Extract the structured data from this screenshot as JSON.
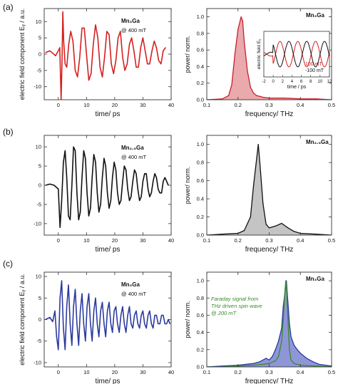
{
  "chart_data": [
    {
      "type": "line",
      "row_label": "(a)",
      "panel": "time",
      "xlabel": "time/ ps",
      "ylabel": "electric field component Eᵧ / a.u.",
      "xlim": [
        -5,
        40
      ],
      "ylim": [
        -14,
        14
      ],
      "xticks": [
        "0",
        "10",
        "20",
        "30",
        "40"
      ],
      "yticks": [
        "-10",
        "-5",
        "0",
        "5",
        "10"
      ],
      "xtick_values": [
        0,
        10,
        20,
        30,
        40
      ],
      "ytick_values": [
        -10,
        -5,
        0,
        5,
        10
      ],
      "color": "#d42020",
      "annotations": [
        "Mn₃Ga",
        "@ 400 mT"
      ],
      "series": [
        {
          "x": [
            -4.5,
            -3,
            -2,
            -1,
            0,
            0.5,
            1,
            1.3,
            1.6,
            1.9,
            2.4,
            3,
            3.7,
            4.4,
            5.2,
            6,
            6.8,
            7.6,
            8.4,
            9.2,
            10,
            10.8,
            11.6,
            12.4,
            13.2,
            14,
            14.8,
            15.6,
            16.4,
            17.2,
            18,
            18.8,
            19.6,
            20.4,
            21.2,
            22,
            22.8,
            23.6,
            24.4,
            25.2,
            26,
            26.8,
            27.6,
            28.4,
            29.2,
            30,
            30.8,
            31.6,
            32.4,
            33.2,
            34,
            34.8,
            35.6,
            36.4,
            37.2,
            38
          ],
          "y": [
            0.5,
            1,
            0.3,
            -0.5,
            1,
            2,
            -14,
            -3,
            13,
            4,
            -3,
            -4,
            3,
            7,
            4,
            -5,
            -7,
            -1,
            8,
            8,
            0,
            -8,
            -6,
            3,
            9,
            5,
            -4,
            -7,
            -1,
            7,
            6,
            -3,
            -6,
            -2,
            5,
            7,
            -1,
            -5,
            -3,
            3,
            5,
            1,
            -4,
            -4,
            2,
            5,
            1,
            -3,
            -3,
            1,
            4,
            2,
            -2,
            -3,
            1,
            2
          ]
        }
      ]
    },
    {
      "type": "area",
      "row_label": "(a)",
      "panel": "spectrum",
      "xlabel": "frequency/ THz",
      "ylabel": "power/ norm.",
      "xlim": [
        0.1,
        0.5
      ],
      "ylim": [
        0,
        1.1
      ],
      "xticks": [
        "0.1",
        "0.2",
        "0.3",
        "0.4",
        "0.5"
      ],
      "yticks": [
        "0.0",
        "0.2",
        "0.4",
        "0.6",
        "0.8",
        "1.0"
      ],
      "xtick_values": [
        0.1,
        0.2,
        0.3,
        0.4,
        0.5
      ],
      "ytick_values": [
        0,
        0.2,
        0.4,
        0.6,
        0.8,
        1.0
      ],
      "color": "#c8202a",
      "fill": "#e9a9ad",
      "annotations": [
        "Mn₃Ga"
      ],
      "series": [
        {
          "x": [
            0.1,
            0.15,
            0.17,
            0.18,
            0.19,
            0.2,
            0.21,
            0.215,
            0.22,
            0.23,
            0.24,
            0.25,
            0.26,
            0.27,
            0.28,
            0.3,
            0.35,
            0.4,
            0.45,
            0.5
          ],
          "y": [
            0,
            0.01,
            0.05,
            0.18,
            0.55,
            0.85,
            1.0,
            0.95,
            0.7,
            0.35,
            0.15,
            0.08,
            0.05,
            0.04,
            0.03,
            0.02,
            0.02,
            0.01,
            0.01,
            0
          ]
        }
      ],
      "inset": {
        "xlabel": "time / ps",
        "ylabel": "electric field Eᵧ",
        "xlim": [
          -2,
          12
        ],
        "xticks": [
          "-2",
          "0",
          "2",
          "4",
          "6",
          "8",
          "10",
          "12"
        ],
        "xtick_values": [
          -2,
          0,
          2,
          4,
          6,
          8,
          10,
          12
        ],
        "series": [
          {
            "name": "100 mT",
            "color": "#d42020"
          },
          {
            "name": "-100 mT",
            "color": "#111111"
          }
        ]
      }
    },
    {
      "type": "line",
      "row_label": "(b)",
      "panel": "time",
      "xlabel": "time/ ps",
      "ylabel": "",
      "xlim": [
        -5,
        40
      ],
      "ylim": [
        -13,
        13
      ],
      "xticks": [
        "0",
        "10",
        "20",
        "30",
        "40"
      ],
      "yticks": [
        "-10",
        "-5",
        "0",
        "5",
        "10"
      ],
      "xtick_values": [
        0,
        10,
        20,
        30,
        40
      ],
      "ytick_values": [
        -10,
        -5,
        0,
        5,
        10
      ],
      "color": "#111111",
      "annotations": [
        "Mn₂.₅Ga",
        "@ 400 mT"
      ],
      "series": [
        {
          "x": [
            -4.5,
            -3,
            -1.5,
            0,
            0.6,
            1.2,
            1.8,
            2.4,
            3,
            3.6,
            4.2,
            4.8,
            5.4,
            6,
            6.6,
            7.2,
            7.8,
            8.4,
            9,
            9.6,
            10.2,
            10.8,
            11.4,
            12,
            12.6,
            13.2,
            13.8,
            14.4,
            15,
            15.6,
            16.2,
            16.8,
            17.4,
            18,
            18.6,
            19.2,
            19.8,
            20.4,
            21,
            21.6,
            22.2,
            22.8,
            23.4,
            24,
            24.6,
            25.2,
            25.8,
            26.4,
            27,
            27.6,
            28.2,
            28.8,
            29.4,
            30,
            30.6,
            31.2,
            31.8,
            32.4,
            33,
            33.6,
            34.2,
            34.8,
            35.4,
            36,
            36.6,
            37.2,
            37.8,
            38.4,
            39
          ],
          "y": [
            0,
            0.3,
            0,
            -1,
            -11,
            -4,
            6,
            9,
            2,
            -8,
            -9,
            0,
            10,
            9,
            -2,
            -9,
            -7,
            2,
            9,
            7,
            -2,
            -8,
            -6,
            2,
            8,
            6,
            -2,
            -7,
            -5,
            2,
            7,
            5,
            -2,
            -6,
            -4,
            2,
            6,
            4,
            -2,
            -5,
            -4,
            1,
            5,
            4,
            -1,
            -4,
            -3,
            1,
            4,
            3,
            -1,
            -4,
            -3,
            1,
            3,
            3,
            -1,
            -3,
            -2,
            1,
            3,
            2,
            -1,
            -2,
            -2,
            1,
            2,
            1,
            0
          ]
        }
      ]
    },
    {
      "type": "area",
      "row_label": "(b)",
      "panel": "spectrum",
      "xlabel": "frequency/ THz",
      "ylabel": "power/ norm.",
      "xlim": [
        0.1,
        0.5
      ],
      "ylim": [
        0,
        1.1
      ],
      "xticks": [
        "0.1",
        "0.2",
        "0.3",
        "0.4",
        "0.5"
      ],
      "yticks": [
        "0.0",
        "0.2",
        "0.4",
        "0.6",
        "0.8",
        "1.0"
      ],
      "xtick_values": [
        0.1,
        0.2,
        0.3,
        0.4,
        0.5
      ],
      "ytick_values": [
        0,
        0.2,
        0.4,
        0.6,
        0.8,
        1.0
      ],
      "color": "#111111",
      "fill": "#c4c4c4",
      "annotations": [
        "Mn₂.₅Ga"
      ],
      "series": [
        {
          "x": [
            0.1,
            0.15,
            0.2,
            0.22,
            0.24,
            0.25,
            0.26,
            0.265,
            0.27,
            0.28,
            0.29,
            0.3,
            0.32,
            0.34,
            0.36,
            0.38,
            0.4,
            0.45,
            0.5
          ],
          "y": [
            0,
            0.01,
            0.02,
            0.05,
            0.2,
            0.55,
            0.85,
            1.0,
            0.8,
            0.35,
            0.12,
            0.08,
            0.1,
            0.13,
            0.08,
            0.04,
            0.02,
            0.01,
            0
          ]
        }
      ]
    },
    {
      "type": "line",
      "row_label": "(c)",
      "panel": "time",
      "xlabel": "time/ ps",
      "ylabel": "electric field component Eᵧ / a.u.",
      "xlim": [
        -5,
        40
      ],
      "ylim": [
        -11,
        11
      ],
      "xticks": [
        "0",
        "10",
        "20",
        "30",
        "40"
      ],
      "yticks": [
        "-10",
        "-5",
        "0",
        "5",
        "10"
      ],
      "xtick_values": [
        0,
        10,
        20,
        30,
        40
      ],
      "ytick_values": [
        -10,
        -5,
        0,
        5,
        10
      ],
      "color": "#2b3a9e",
      "annotations": [
        "Mn₃Ga",
        "@ 400 mT"
      ],
      "series": [
        {
          "x": [
            -4.5,
            -3,
            -2,
            -1.2,
            -0.6,
            0,
            0.6,
            1.2,
            1.8,
            2.4,
            3,
            3.6,
            4.2,
            4.8,
            5.4,
            6,
            6.6,
            7.2,
            7.8,
            8.4,
            9,
            9.6,
            10.2,
            10.8,
            11.4,
            12,
            12.6,
            13.2,
            13.8,
            14.4,
            15,
            15.6,
            16.2,
            16.8,
            17.4,
            18,
            18.6,
            19.2,
            19.8,
            20.4,
            21,
            21.6,
            22.2,
            22.8,
            23.4,
            24,
            24.6,
            25.2,
            25.8,
            26.4,
            27,
            27.6,
            28.2,
            28.8,
            29.4,
            30,
            30.6,
            31.2,
            31.8,
            32.4,
            33,
            33.6,
            34.2,
            34.8,
            35.4,
            36,
            36.6,
            37.2,
            37.8,
            38.4,
            39,
            39.6
          ],
          "y": [
            0,
            0.5,
            -0.5,
            2,
            -4,
            -7,
            5,
            9,
            -2,
            -7,
            3,
            8,
            -1,
            -6,
            3,
            7,
            -1,
            -6,
            2,
            6,
            -1,
            -5,
            3,
            6,
            -1,
            -5,
            2,
            5,
            -1,
            -4,
            2,
            4,
            -1,
            -4,
            2,
            4,
            -1,
            -3,
            2,
            3,
            -1,
            -3,
            1,
            3,
            -1,
            -3,
            1,
            3,
            -1,
            -2,
            1,
            2,
            -1,
            -2,
            1,
            2,
            -1,
            -2,
            1,
            2,
            -1,
            -2,
            1,
            1,
            -1,
            -1,
            1,
            1,
            -1,
            -1,
            0,
            -1
          ]
        }
      ]
    },
    {
      "type": "area",
      "row_label": "(c)",
      "panel": "spectrum",
      "xlabel": "frequency/ THz",
      "ylabel": "power/ norm.",
      "xlim": [
        0.1,
        0.5
      ],
      "ylim": [
        0,
        1.1
      ],
      "xticks": [
        "0.1",
        "0.2",
        "0.3",
        "0.4",
        "0.5"
      ],
      "yticks": [
        "0.0",
        "0.2",
        "0.4",
        "0.6",
        "0.8",
        "1.0"
      ],
      "xtick_values": [
        0.1,
        0.2,
        0.3,
        0.4,
        0.5
      ],
      "ytick_values": [
        0,
        0.2,
        0.4,
        0.6,
        0.8,
        1.0
      ],
      "color": "#2b3a9e",
      "fill": "#8f96d8",
      "annotations": [
        "Mn₃Ga",
        "Faraday signal from",
        "THz driven spin wave",
        "@ 200 mT"
      ],
      "series": [
        {
          "x": [
            0.1,
            0.15,
            0.2,
            0.25,
            0.27,
            0.29,
            0.3,
            0.31,
            0.32,
            0.33,
            0.34,
            0.345,
            0.35,
            0.355,
            0.36,
            0.365,
            0.37,
            0.38,
            0.39,
            0.4,
            0.42,
            0.44,
            0.46,
            0.5
          ],
          "y": [
            0,
            0.01,
            0.02,
            0.04,
            0.06,
            0.1,
            0.08,
            0.12,
            0.2,
            0.3,
            0.45,
            0.7,
            0.85,
            1.0,
            0.75,
            0.5,
            0.35,
            0.25,
            0.2,
            0.16,
            0.1,
            0.06,
            0.03,
            0.01
          ]
        },
        {
          "name": "Faraday signal",
          "color": "#3a8a2a",
          "x": [
            0.1,
            0.15,
            0.2,
            0.25,
            0.28,
            0.3,
            0.32,
            0.33,
            0.34,
            0.345,
            0.35,
            0.353,
            0.356,
            0.36,
            0.365,
            0.37,
            0.38,
            0.4,
            0.45,
            0.5
          ],
          "y": [
            0,
            0,
            0.01,
            0.02,
            0.03,
            0.04,
            0.07,
            0.12,
            0.3,
            0.55,
            0.85,
            1.0,
            0.9,
            0.55,
            0.2,
            0.08,
            0.04,
            0.02,
            0.01,
            0
          ]
        }
      ]
    }
  ]
}
